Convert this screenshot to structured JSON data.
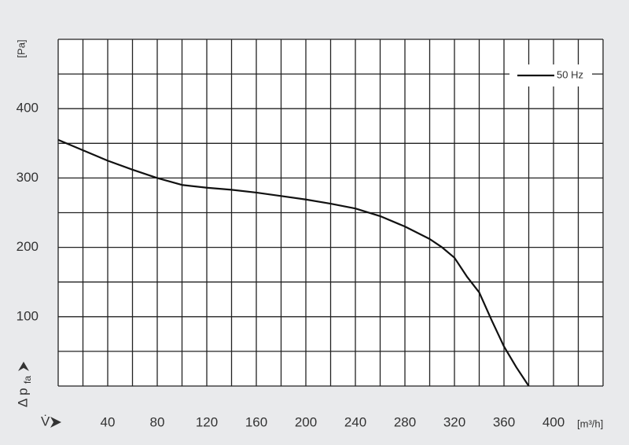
{
  "chart_data": {
    "type": "line",
    "y_unit": "[Pa]",
    "y_label": "Δ p",
    "y_label_sub": "fa",
    "x_label": "V̇",
    "x_unit": "[m³/h]",
    "xlim": [
      0,
      440
    ],
    "ylim": [
      0,
      500
    ],
    "xticks": [
      40,
      80,
      120,
      160,
      200,
      240,
      280,
      320,
      360,
      400
    ],
    "x_minor_ticks": [
      0,
      20,
      60,
      100,
      140,
      180,
      220,
      260,
      300,
      340,
      380,
      420,
      440
    ],
    "yticks": [
      100,
      200,
      300,
      400
    ],
    "y_minor_ticks": [
      0,
      50,
      150,
      250,
      350,
      450,
      500
    ],
    "grid": true,
    "legend": "upper right",
    "x": [
      0,
      20,
      40,
      60,
      80,
      100,
      120,
      140,
      160,
      180,
      200,
      220,
      240,
      260,
      280,
      300,
      310,
      320,
      330,
      340,
      350,
      360,
      370,
      380
    ],
    "series": [
      {
        "name": "50 Hz",
        "color": "#111111",
        "values": [
          355,
          340,
          325,
          312,
          300,
          290,
          286,
          283,
          279,
          274,
          269,
          263,
          256,
          245,
          230,
          212,
          200,
          185,
          158,
          135,
          95,
          57,
          27,
          0
        ]
      }
    ]
  }
}
